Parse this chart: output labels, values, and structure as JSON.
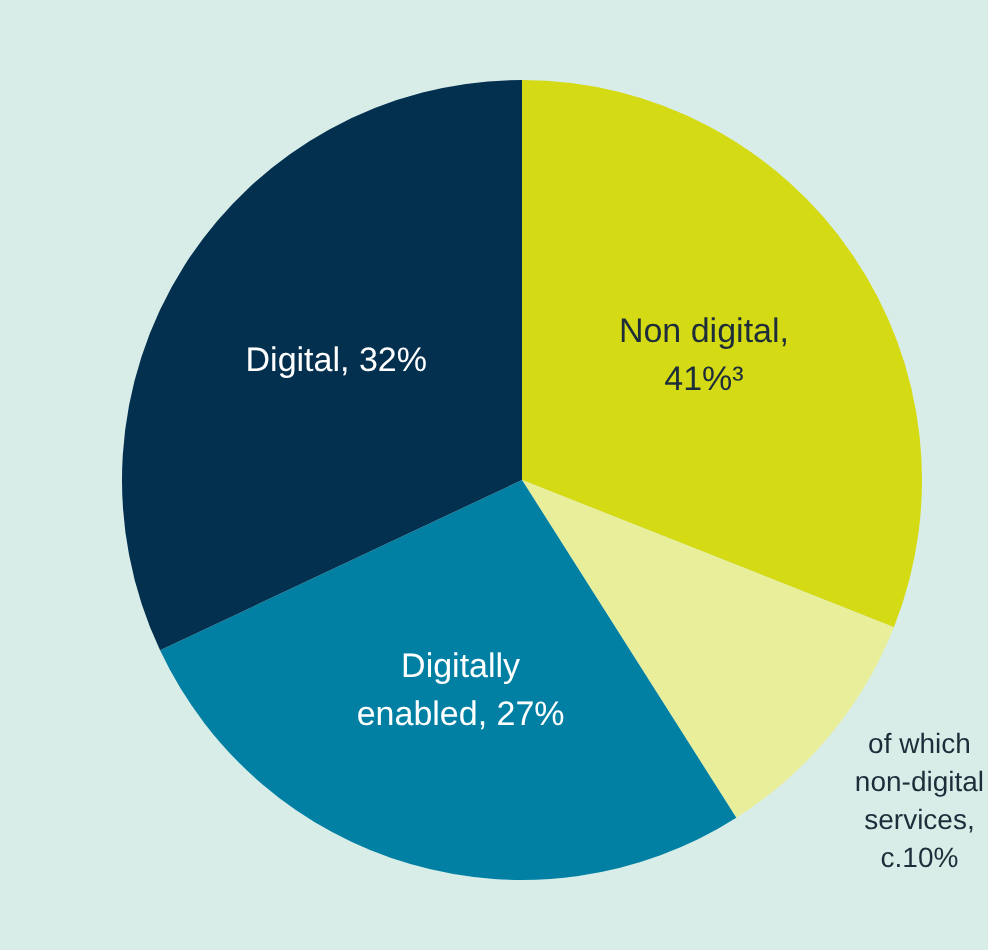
{
  "chart_data": {
    "type": "pie",
    "categories": [
      "Non digital, 41%³",
      "of which non-digital services, c.10%",
      "Digitally enabled, 27%",
      "Digital, 32%"
    ],
    "values": [
      31,
      10,
      27,
      32
    ],
    "colors": [
      "#d4da14",
      "#e9ee9a",
      "#0180a3",
      "#03304f"
    ],
    "legend": false
  }
}
